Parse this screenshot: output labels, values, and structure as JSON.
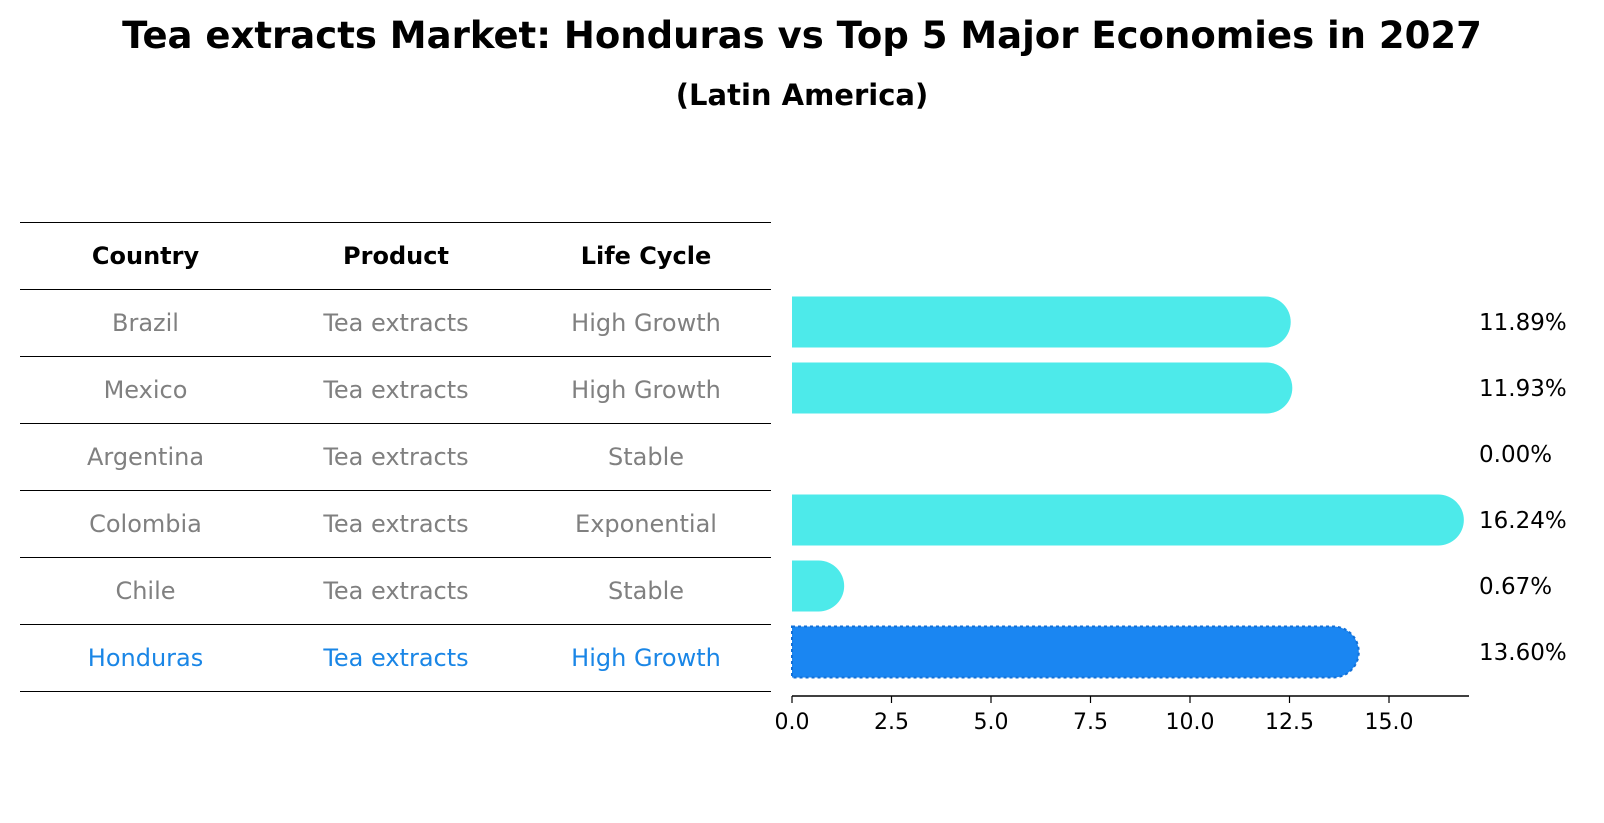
{
  "title": "Tea extracts Market: Honduras vs Top 5 Major Economies in 2027",
  "subtitle": "(Latin America)",
  "table": {
    "headers": [
      "Country",
      "Product",
      "Life Cycle"
    ],
    "rows": [
      [
        "Brazil",
        "Tea extracts",
        "High Growth"
      ],
      [
        "Mexico",
        "Tea extracts",
        "High Growth"
      ],
      [
        "Argentina",
        "Tea extracts",
        "Stable"
      ],
      [
        "Colombia",
        "Tea extracts",
        "Exponential"
      ],
      [
        "Chile",
        "Tea extracts",
        "Stable"
      ],
      [
        "Honduras",
        "Tea extracts",
        "High Growth"
      ]
    ]
  },
  "colors": {
    "bar": "#4deaea",
    "highlight_bar": "#1a86f2",
    "highlight_text": "#1a86e6",
    "muted_text": "#808080"
  },
  "chart_data": {
    "type": "bar",
    "orientation": "horizontal",
    "categories": [
      "Brazil",
      "Mexico",
      "Argentina",
      "Colombia",
      "Chile",
      "Honduras"
    ],
    "values": [
      11.89,
      11.93,
      0.0,
      16.24,
      0.67,
      13.6
    ],
    "value_labels": [
      "11.89%",
      "11.93%",
      "0.00%",
      "16.24%",
      "0.67%",
      "13.60%"
    ],
    "highlight": "Honduras",
    "xlim": [
      0,
      17.1
    ],
    "xticks": [
      0.0,
      2.5,
      5.0,
      7.5,
      10.0,
      12.5,
      15.0
    ],
    "xtick_labels": [
      "0.0",
      "2.5",
      "5.0",
      "7.5",
      "10.0",
      "12.5",
      "15.0"
    ],
    "xlabel": "",
    "ylabel": "",
    "grid": false
  }
}
